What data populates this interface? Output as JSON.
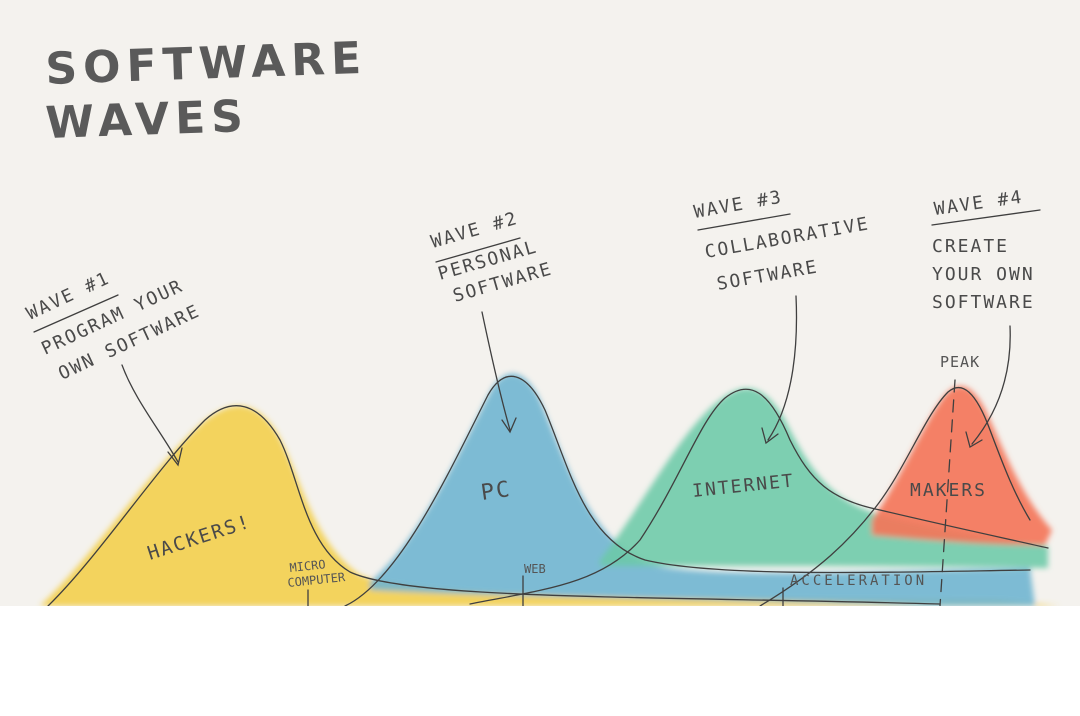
{
  "title": [
    "SOFTWARE",
    "WAVES"
  ],
  "waves": [
    {
      "heading": "WAVE #1",
      "description": [
        "PROGRAM YOUR",
        "OWN SOFTWARE"
      ],
      "label": "HACKERS!",
      "color": "#f3cf4d"
    },
    {
      "heading": "WAVE #2",
      "description": [
        "PERSONAL",
        "SOFTWARE"
      ],
      "label": "PC",
      "color": "#6db4d0"
    },
    {
      "heading": "WAVE #3",
      "description": [
        "COLLABORATIVE",
        "SOFTWARE"
      ],
      "label": "INTERNET",
      "color": "#6cc9a9"
    },
    {
      "heading": "WAVE #4",
      "description": [
        "CREATE",
        "YOUR OWN",
        "SOFTWARE"
      ],
      "label": "MAKERS",
      "color": "#f4765a"
    }
  ],
  "markers": {
    "micro_computer": [
      "MICRO",
      "COMPUTER"
    ],
    "web": "WEB",
    "acceleration": "ACCELERATION",
    "peak": "PEAK"
  }
}
